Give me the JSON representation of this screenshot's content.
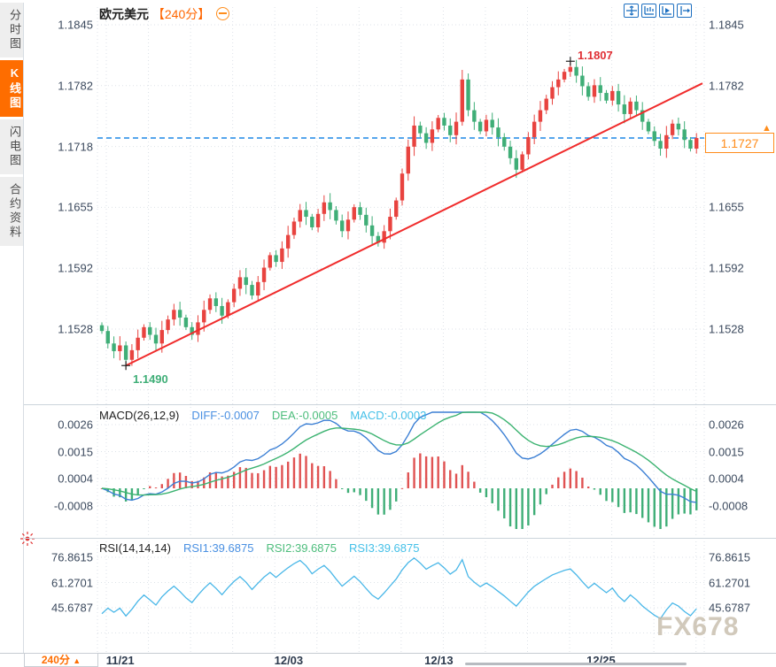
{
  "window": {
    "top_bar_color": "#4a8cc8"
  },
  "sidebar": {
    "tabs": [
      {
        "label": "分时图",
        "active": false
      },
      {
        "label": "K线图",
        "active": true
      },
      {
        "label": "闪电图",
        "active": false
      },
      {
        "label": "合约资料",
        "active": false
      }
    ]
  },
  "header": {
    "symbol": "欧元美元",
    "interval": "【240分】"
  },
  "toolbar": {
    "icons": [
      "crosshair-icon",
      "scale-axis-icon",
      "auto-scale-icon",
      "shift-right-icon"
    ]
  },
  "colors": {
    "up": "#e8433f",
    "down": "#3fae77",
    "trendline": "#f02c2c",
    "dashed_price_line": "#1e88e5",
    "accent_orange": "#fe6d00",
    "diff_line": "#3b7fd4",
    "dea_line": "#3cb371",
    "rsi_line": "#49b7e8",
    "label_blue": "#4a90e2",
    "label_green": "#4dbd7c",
    "label_cyan": "#45c0e8"
  },
  "chart_data": [
    {
      "type": "candlestick",
      "title": "欧元美元 240分",
      "y_ticks": [
        "1.1845",
        "1.1782",
        "1.1718",
        "1.1655",
        "1.1592",
        "1.1528"
      ],
      "ylim": [
        1.1845,
        1.149
      ],
      "x_ticks": [
        {
          "label": "11/21",
          "index": 1
        },
        {
          "label": "12/03",
          "index": 29
        },
        {
          "label": "12/13",
          "index": 54
        },
        {
          "label": "12/25",
          "index": 81
        }
      ],
      "closes": [
        1.1526,
        1.1513,
        1.1505,
        1.1511,
        1.1496,
        1.1506,
        1.1519,
        1.153,
        1.1522,
        1.1513,
        1.1527,
        1.1538,
        1.1548,
        1.154,
        1.153,
        1.1522,
        1.1535,
        1.1548,
        1.156,
        1.1552,
        1.1542,
        1.1556,
        1.157,
        1.1582,
        1.1574,
        1.1563,
        1.1577,
        1.1592,
        1.1605,
        1.1598,
        1.1612,
        1.1626,
        1.164,
        1.1652,
        1.1645,
        1.1634,
        1.1648,
        1.166,
        1.1652,
        1.1641,
        1.163,
        1.1642,
        1.1655,
        1.1647,
        1.1636,
        1.1625,
        1.1618,
        1.163,
        1.1645,
        1.1662,
        1.169,
        1.1718,
        1.174,
        1.1732,
        1.1722,
        1.1736,
        1.1748,
        1.174,
        1.173,
        1.1744,
        1.1788,
        1.1756,
        1.1744,
        1.1734,
        1.1746,
        1.1738,
        1.1728,
        1.1718,
        1.1706,
        1.1694,
        1.171,
        1.1728,
        1.1744,
        1.1756,
        1.1768,
        1.178,
        1.1788,
        1.1796,
        1.1801,
        1.1792,
        1.1781,
        1.177,
        1.1782,
        1.1774,
        1.1766,
        1.1776,
        1.1762,
        1.1752,
        1.1765,
        1.1756,
        1.1744,
        1.1734,
        1.1724,
        1.1716,
        1.173,
        1.1742,
        1.1736,
        1.1725,
        1.1716,
        1.1727
      ],
      "high_point": {
        "index": 78,
        "price": 1.1807,
        "label": "1.1807"
      },
      "low_point": {
        "index": 4,
        "price": 1.149,
        "label": "1.1490"
      },
      "spike_high": {
        "index": 60,
        "price": 1.1798
      },
      "current_price": {
        "price": 1.1727,
        "label": "1.1727"
      },
      "trendline": {
        "from": {
          "index": 4,
          "price": 1.149
        },
        "to": {
          "index": 100,
          "price": 1.1784
        }
      }
    },
    {
      "type": "macd",
      "label": "MACD(26,12,9)",
      "readouts": [
        {
          "text": "DIFF:-0.0007",
          "color": "#4a90e2"
        },
        {
          "text": "DEA:-0.0005",
          "color": "#4dbd7c"
        },
        {
          "text": "MACD:-0.0003",
          "color": "#45c0e8"
        }
      ],
      "y_ticks": [
        "0.0026",
        "0.0015",
        "0.0004",
        "-0.0008"
      ],
      "derived_from": "candlestick closes (EMA 12/26, DEA 9, hist = 2*(DIFF-DEA))"
    },
    {
      "type": "line",
      "label": "RSI(14,14,14)",
      "readouts": [
        {
          "text": "RSI1:39.6875",
          "color": "#4a90e2"
        },
        {
          "text": "RSI2:39.6875",
          "color": "#4dbd7c"
        },
        {
          "text": "RSI3:39.6875",
          "color": "#45c0e8"
        }
      ],
      "y_ticks": [
        "76.8615",
        "61.2701",
        "45.6787"
      ],
      "derived_from": "candlestick closes (Wilder RSI 14; three identical lines)"
    }
  ],
  "bottom": {
    "interval_label": "240分",
    "arrow": "▲"
  },
  "watermark": {
    "text": "FX678"
  }
}
